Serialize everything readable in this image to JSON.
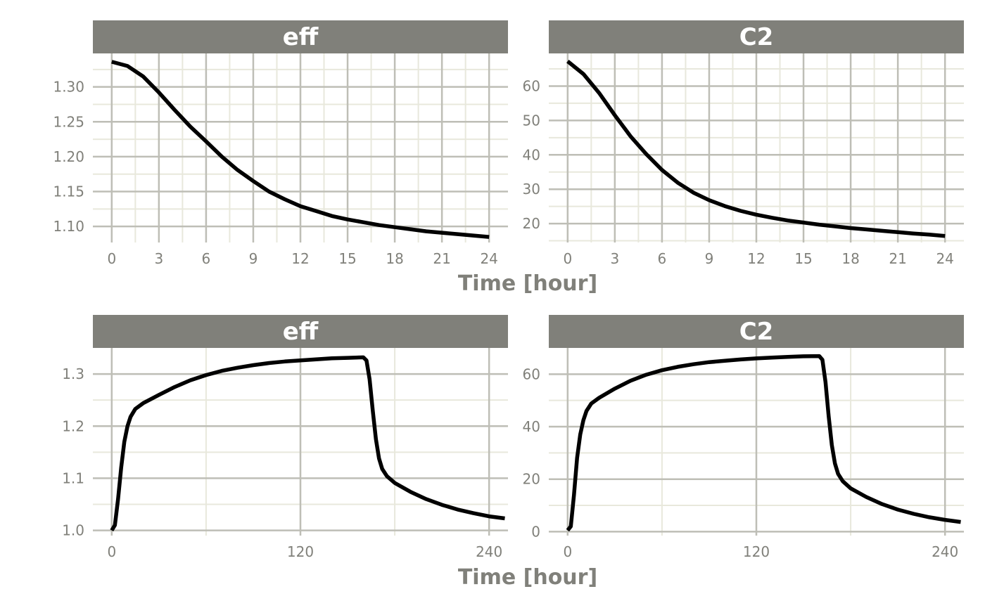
{
  "colors": {
    "strip_bg": "#80807a",
    "strip_text": "#ffffff",
    "grid_major": "#bebeb6",
    "grid_minor": "#e8e8dc",
    "line": "#000000",
    "tick_text": "#80807a"
  },
  "rows": [
    {
      "xlabel": "Time [hour]"
    },
    {
      "xlabel": "Time [hour]"
    }
  ],
  "chart_data": [
    {
      "type": "line",
      "title": "eff",
      "xlabel": "",
      "ylabel": "",
      "xlim": [
        -1.2,
        25.2
      ],
      "ylim": [
        1.077,
        1.348
      ],
      "xticks": [
        0,
        3,
        6,
        9,
        12,
        15,
        18,
        21,
        24
      ],
      "xtick_labels": [
        "0",
        "3",
        "6",
        "9",
        "12",
        "15",
        "18",
        "21",
        "24"
      ],
      "yticks": [
        1.1,
        1.15,
        1.2,
        1.25,
        1.3
      ],
      "ytick_labels": [
        "1.10",
        "1.15",
        "1.20",
        "1.25",
        "1.30"
      ],
      "grid": true,
      "series": [
        {
          "x": [
            0,
            1,
            2,
            3,
            4,
            5,
            6,
            7,
            8,
            9,
            10,
            11,
            12,
            13,
            14,
            15,
            16,
            17,
            18,
            19,
            20,
            21,
            22,
            23,
            24
          ],
          "values": [
            1.336,
            1.33,
            1.315,
            1.292,
            1.267,
            1.243,
            1.222,
            1.2,
            1.181,
            1.165,
            1.15,
            1.139,
            1.129,
            1.122,
            1.115,
            1.11,
            1.106,
            1.102,
            1.099,
            1.096,
            1.093,
            1.091,
            1.089,
            1.087,
            1.085
          ]
        }
      ]
    },
    {
      "type": "line",
      "title": "C2",
      "xlabel": "",
      "ylabel": "",
      "xlim": [
        -1.2,
        25.2
      ],
      "ylim": [
        14.5,
        69.5
      ],
      "xticks": [
        0,
        3,
        6,
        9,
        12,
        15,
        18,
        21,
        24
      ],
      "xtick_labels": [
        "0",
        "3",
        "6",
        "9",
        "12",
        "15",
        "18",
        "21",
        "24"
      ],
      "yticks": [
        20,
        30,
        40,
        50,
        60
      ],
      "ytick_labels": [
        "20",
        "30",
        "40",
        "50",
        "60"
      ],
      "grid": true,
      "series": [
        {
          "x": [
            0,
            1,
            2,
            3,
            4,
            5,
            6,
            7,
            8,
            9,
            10,
            11,
            12,
            13,
            14,
            15,
            16,
            17,
            18,
            19,
            20,
            21,
            22,
            23,
            24
          ],
          "values": [
            67.2,
            63.5,
            58.0,
            51.5,
            45.4,
            40.2,
            35.6,
            31.9,
            29.0,
            26.8,
            25.1,
            23.7,
            22.6,
            21.7,
            20.9,
            20.3,
            19.7,
            19.2,
            18.7,
            18.3,
            17.9,
            17.5,
            17.1,
            16.8,
            16.4
          ]
        }
      ]
    },
    {
      "type": "line",
      "title": "eff",
      "xlabel": "",
      "ylabel": "",
      "xlim": [
        -12,
        252
      ],
      "ylim": [
        0.99,
        1.35
      ],
      "xticks": [
        0,
        120,
        240
      ],
      "xtick_labels": [
        "0",
        "120",
        "240"
      ],
      "yticks": [
        1.0,
        1.1,
        1.2,
        1.3
      ],
      "ytick_labels": [
        "1.0",
        "1.1",
        "1.2",
        "1.3"
      ],
      "grid": true,
      "series": [
        {
          "x": [
            0,
            2,
            4,
            6,
            8,
            10,
            12,
            15,
            20,
            30,
            40,
            50,
            60,
            70,
            80,
            90,
            100,
            110,
            120,
            130,
            140,
            150,
            160,
            162,
            164,
            166,
            168,
            170,
            172,
            175,
            180,
            190,
            200,
            210,
            220,
            230,
            240,
            250
          ],
          "values": [
            1.0,
            1.01,
            1.06,
            1.12,
            1.17,
            1.2,
            1.218,
            1.233,
            1.244,
            1.26,
            1.275,
            1.288,
            1.298,
            1.306,
            1.312,
            1.317,
            1.321,
            1.324,
            1.326,
            1.328,
            1.33,
            1.331,
            1.332,
            1.326,
            1.29,
            1.23,
            1.175,
            1.138,
            1.118,
            1.104,
            1.091,
            1.074,
            1.06,
            1.049,
            1.04,
            1.033,
            1.027,
            1.023
          ]
        }
      ]
    },
    {
      "type": "line",
      "title": "C2",
      "xlabel": "",
      "ylabel": "",
      "xlim": [
        -12,
        252
      ],
      "ylim": [
        -1.5,
        70
      ],
      "xticks": [
        0,
        120,
        240
      ],
      "xtick_labels": [
        "0",
        "120",
        "240"
      ],
      "yticks": [
        0,
        20,
        40,
        60
      ],
      "ytick_labels": [
        "0",
        "20",
        "40",
        "60"
      ],
      "grid": true,
      "series": [
        {
          "x": [
            0,
            2,
            4,
            6,
            8,
            10,
            12,
            15,
            20,
            30,
            40,
            50,
            60,
            70,
            80,
            90,
            100,
            110,
            120,
            130,
            140,
            150,
            160,
            162,
            164,
            166,
            168,
            170,
            172,
            175,
            180,
            190,
            200,
            210,
            220,
            230,
            240,
            250
          ],
          "values": [
            0.5,
            2.0,
            14.0,
            28.0,
            37.0,
            42.5,
            46.0,
            48.8,
            51.0,
            54.5,
            57.5,
            59.8,
            61.5,
            62.8,
            63.8,
            64.6,
            65.1,
            65.6,
            66.0,
            66.3,
            66.6,
            66.8,
            66.9,
            65.5,
            57.0,
            44.0,
            33.0,
            26.0,
            22.0,
            19.2,
            16.5,
            13.2,
            10.5,
            8.4,
            6.8,
            5.5,
            4.5,
            3.7
          ]
        }
      ]
    }
  ]
}
